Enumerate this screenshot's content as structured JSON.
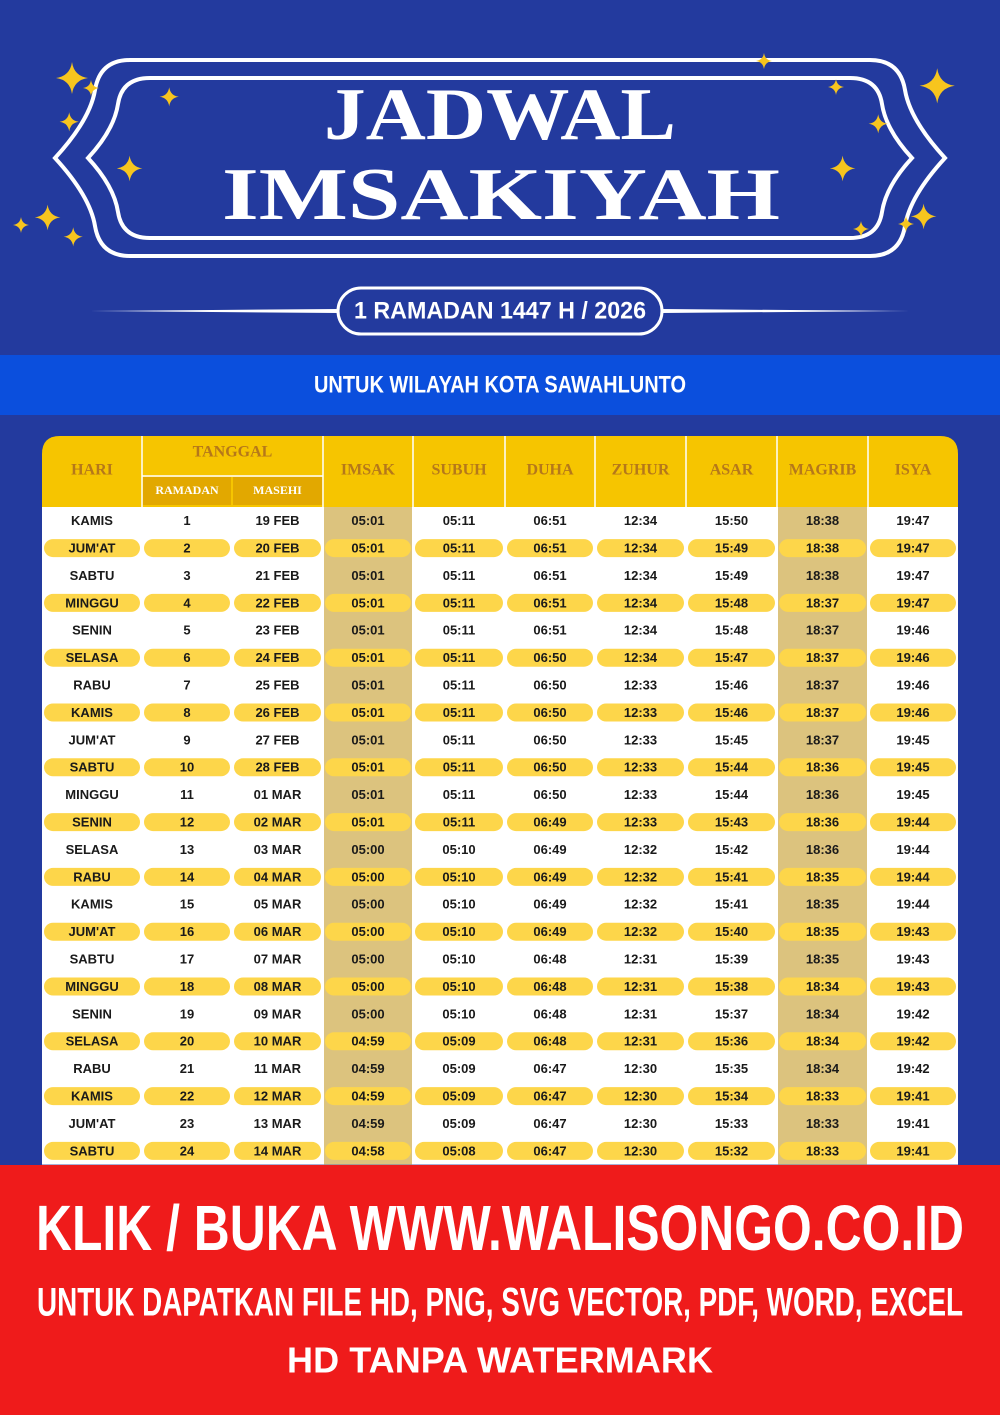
{
  "header": {
    "title_line1": "JADWAL",
    "title_line2": "IMSAKIYAH",
    "subtitle": "1 RAMADAN 1447 H / 2026"
  },
  "region": "UNTUK WILAYAH KOTA SAWAHLUNTO",
  "table": {
    "columns": [
      "HARI",
      "TANGGAL",
      "IMSAK",
      "SUBUH",
      "DUHA",
      "ZUHUR",
      "ASAR",
      "MAGRIB",
      "ISYA"
    ],
    "subcolumns": [
      "RAMADAN",
      "MASEHI"
    ],
    "rows": [
      [
        "KAMIS",
        1,
        "19 FEB",
        "05:01",
        "05:11",
        "06:51",
        "12:34",
        "15:50",
        "18:38",
        "19:47"
      ],
      [
        "JUM'AT",
        2,
        "20 FEB",
        "05:01",
        "05:11",
        "06:51",
        "12:34",
        "15:49",
        "18:38",
        "19:47"
      ],
      [
        "SABTU",
        3,
        "21 FEB",
        "05:01",
        "05:11",
        "06:51",
        "12:34",
        "15:49",
        "18:38",
        "19:47"
      ],
      [
        "MINGGU",
        4,
        "22 FEB",
        "05:01",
        "05:11",
        "06:51",
        "12:34",
        "15:48",
        "18:37",
        "19:47"
      ],
      [
        "SENIN",
        5,
        "23 FEB",
        "05:01",
        "05:11",
        "06:51",
        "12:34",
        "15:48",
        "18:37",
        "19:46"
      ],
      [
        "SELASA",
        6,
        "24 FEB",
        "05:01",
        "05:11",
        "06:50",
        "12:34",
        "15:47",
        "18:37",
        "19:46"
      ],
      [
        "RABU",
        7,
        "25 FEB",
        "05:01",
        "05:11",
        "06:50",
        "12:33",
        "15:46",
        "18:37",
        "19:46"
      ],
      [
        "KAMIS",
        8,
        "26 FEB",
        "05:01",
        "05:11",
        "06:50",
        "12:33",
        "15:46",
        "18:37",
        "19:46"
      ],
      [
        "JUM'AT",
        9,
        "27 FEB",
        "05:01",
        "05:11",
        "06:50",
        "12:33",
        "15:45",
        "18:37",
        "19:45"
      ],
      [
        "SABTU",
        10,
        "28 FEB",
        "05:01",
        "05:11",
        "06:50",
        "12:33",
        "15:44",
        "18:36",
        "19:45"
      ],
      [
        "MINGGU",
        11,
        "01 MAR",
        "05:01",
        "05:11",
        "06:50",
        "12:33",
        "15:44",
        "18:36",
        "19:45"
      ],
      [
        "SENIN",
        12,
        "02 MAR",
        "05:01",
        "05:11",
        "06:49",
        "12:33",
        "15:43",
        "18:36",
        "19:44"
      ],
      [
        "SELASA",
        13,
        "03 MAR",
        "05:00",
        "05:10",
        "06:49",
        "12:32",
        "15:42",
        "18:36",
        "19:44"
      ],
      [
        "RABU",
        14,
        "04 MAR",
        "05:00",
        "05:10",
        "06:49",
        "12:32",
        "15:41",
        "18:35",
        "19:44"
      ],
      [
        "KAMIS",
        15,
        "05 MAR",
        "05:00",
        "05:10",
        "06:49",
        "12:32",
        "15:41",
        "18:35",
        "19:44"
      ],
      [
        "JUM'AT",
        16,
        "06 MAR",
        "05:00",
        "05:10",
        "06:49",
        "12:32",
        "15:40",
        "18:35",
        "19:43"
      ],
      [
        "SABTU",
        17,
        "07 MAR",
        "05:00",
        "05:10",
        "06:48",
        "12:31",
        "15:39",
        "18:35",
        "19:43"
      ],
      [
        "MINGGU",
        18,
        "08 MAR",
        "05:00",
        "05:10",
        "06:48",
        "12:31",
        "15:38",
        "18:34",
        "19:43"
      ],
      [
        "SENIN",
        19,
        "09 MAR",
        "05:00",
        "05:10",
        "06:48",
        "12:31",
        "15:37",
        "18:34",
        "19:42"
      ],
      [
        "SELASA",
        20,
        "10 MAR",
        "04:59",
        "05:09",
        "06:48",
        "12:31",
        "15:36",
        "18:34",
        "19:42"
      ],
      [
        "RABU",
        21,
        "11 MAR",
        "04:59",
        "05:09",
        "06:47",
        "12:30",
        "15:35",
        "18:34",
        "19:42"
      ],
      [
        "KAMIS",
        22,
        "12 MAR",
        "04:59",
        "05:09",
        "06:47",
        "12:30",
        "15:34",
        "18:33",
        "19:41"
      ],
      [
        "JUM'AT",
        23,
        "13 MAR",
        "04:59",
        "05:09",
        "06:47",
        "12:30",
        "15:33",
        "18:33",
        "19:41"
      ],
      [
        "SABTU",
        24,
        "14 MAR",
        "04:58",
        "05:08",
        "06:47",
        "12:30",
        "15:32",
        "18:33",
        "19:41"
      ]
    ]
  },
  "banner": {
    "line1": "KLIK / BUKA WWW.WALISONGO.CO.ID",
    "line2": "UNTUK DAPATKAN FILE HD, PNG, SVG VECTOR, PDF, WORD, EXCEL",
    "line3": "HD TANPA WATERMARK"
  }
}
